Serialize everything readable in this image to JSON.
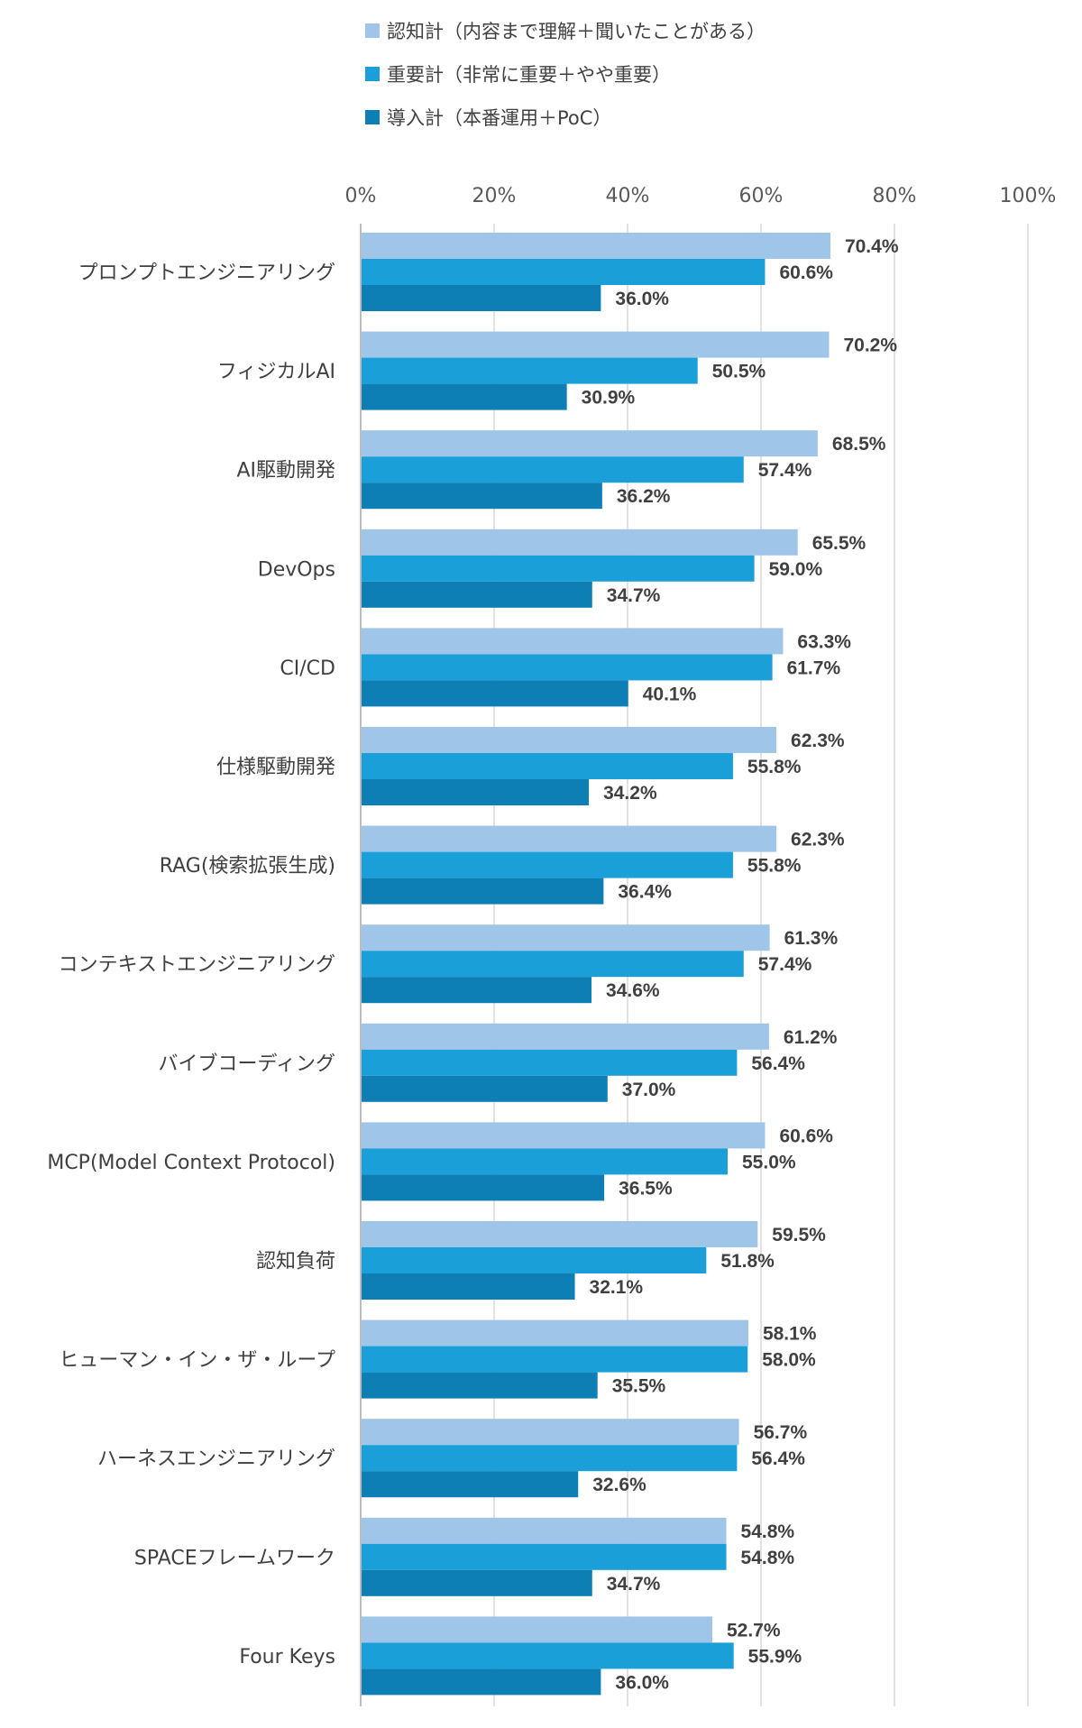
{
  "chart_data": {
    "type": "bar",
    "orientation": "horizontal",
    "categories": [
      "プロンプトエンジニアリング",
      "フィジカルAI",
      "AI駆動開発",
      "DevOps",
      "CI/CD",
      "仕様駆動開発",
      "RAG(検索拡張生成)",
      "コンテキストエンジニアリング",
      "バイブコーディング",
      "MCP(Model Context Protocol)",
      "認知負荷",
      "ヒューマン・イン・ザ・ループ",
      "ハーネスエンジニアリング",
      "SPACEフレームワーク",
      "Four Keys"
    ],
    "series": [
      {
        "name": "認知計（内容まで理解＋聞いたことがある）",
        "color": "#9fc5e8",
        "values": [
          70.4,
          70.2,
          68.5,
          65.5,
          63.3,
          62.3,
          62.3,
          61.3,
          61.2,
          60.6,
          59.5,
          58.1,
          56.7,
          54.8,
          52.7
        ],
        "labels": [
          "70.4%",
          "70.2%",
          "68.5%",
          "65.5%",
          "63.3%",
          "62.3%",
          "62.3%",
          "61.3%",
          "61.2%",
          "60.6%",
          "59.5%",
          "58.1%",
          "56.7%",
          "54.8%",
          "52.7%"
        ]
      },
      {
        "name": "重要計（非常に重要＋やや重要）",
        "color": "#1a9fd9",
        "values": [
          60.6,
          50.5,
          57.4,
          59.0,
          61.7,
          55.8,
          55.8,
          57.4,
          56.4,
          55.0,
          51.8,
          58.0,
          56.4,
          54.8,
          55.9
        ],
        "labels": [
          "60.6%",
          "50.5%",
          "57.4%",
          "59.0%",
          "61.7%",
          "55.8%",
          "55.8%",
          "57.4%",
          "56.4%",
          "55.0%",
          "51.8%",
          "58.0%",
          "56.4%",
          "54.8%",
          "55.9%"
        ]
      },
      {
        "name": "導入計（本番運用＋PoC）",
        "color": "#0e7fb4",
        "values": [
          36.0,
          30.9,
          36.2,
          34.7,
          40.1,
          34.2,
          36.4,
          34.6,
          37.0,
          36.5,
          32.1,
          35.5,
          32.6,
          34.7,
          36.0
        ],
        "labels": [
          "36.0%",
          "30.9%",
          "36.2%",
          "34.7%",
          "40.1%",
          "34.2%",
          "36.4%",
          "34.6%",
          "37.0%",
          "36.5%",
          "32.1%",
          "35.5%",
          "32.6%",
          "34.7%",
          "36.0%"
        ]
      }
    ],
    "x_ticks": [
      "0%",
      "20%",
      "40%",
      "60%",
      "80%",
      "100%"
    ],
    "xlim": [
      0,
      100
    ],
    "grid": true,
    "legend": "top",
    "axis_position": "top"
  }
}
